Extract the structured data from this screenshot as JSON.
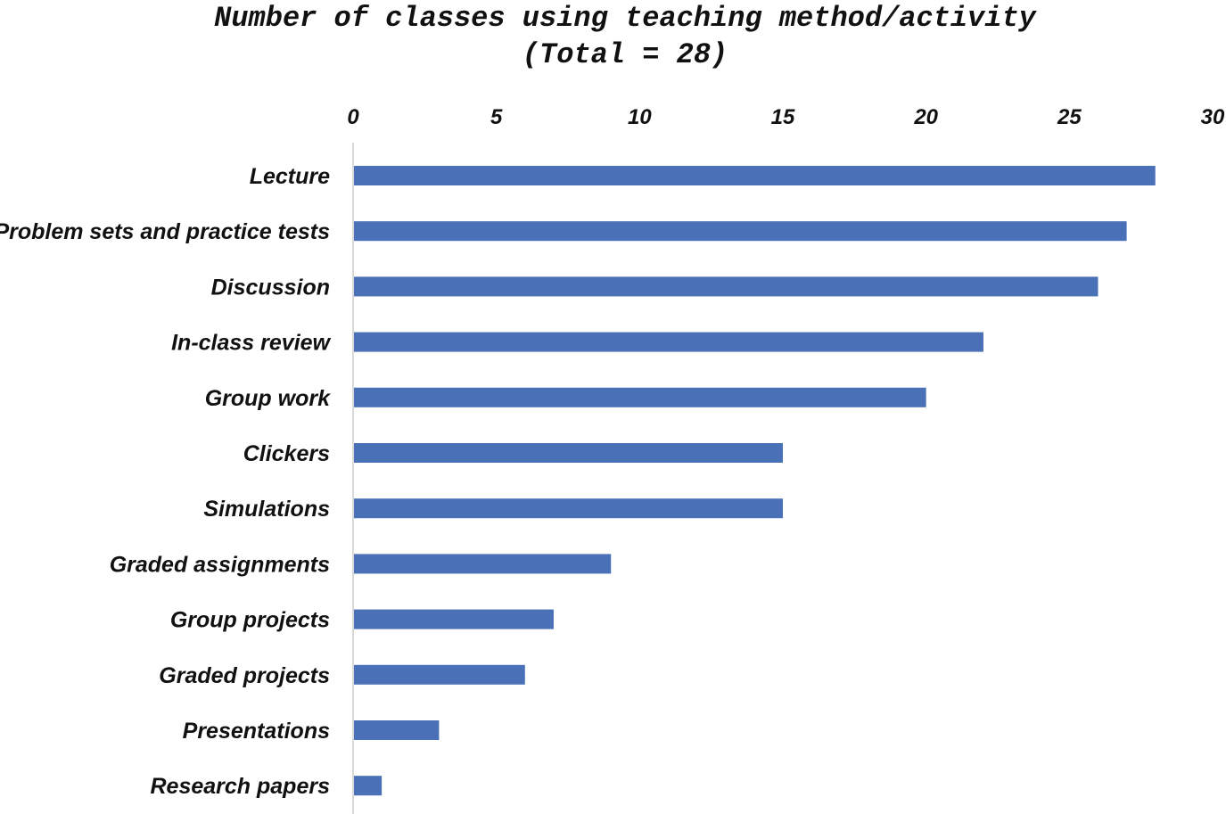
{
  "chart_data": {
    "type": "bar",
    "orientation": "horizontal",
    "title": "Number of classes using teaching method/activity",
    "subtitle": "(Total = 28)",
    "categories": [
      "Lecture",
      "Problem sets and practice tests",
      "Discussion",
      "In-class review",
      "Group work",
      "Clickers",
      "Simulations",
      "Graded assignments",
      "Group projects",
      "Graded projects",
      "Presentations",
      "Research papers"
    ],
    "values": [
      28,
      27,
      26,
      22,
      20,
      15,
      15,
      9,
      7,
      6,
      3,
      1
    ],
    "xlim": [
      0,
      30
    ],
    "xticks": [
      0,
      5,
      10,
      15,
      20,
      25,
      30
    ],
    "x_axis_position": "top",
    "xlabel": "",
    "ylabel": "",
    "grid": false,
    "legend": "none",
    "bar_color": "#4A70B8",
    "axis_line_color": "#D9D9D9"
  }
}
